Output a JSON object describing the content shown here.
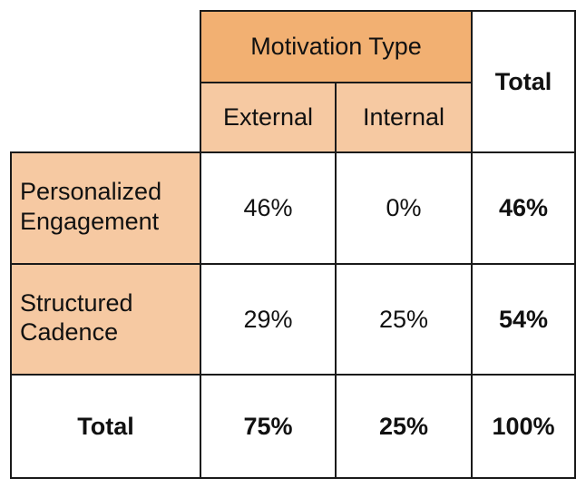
{
  "chart_data": {
    "type": "table",
    "group_header": "Motivation Type",
    "columns": [
      "External",
      "Internal"
    ],
    "total_label": "Total",
    "rows": [
      {
        "label": "Personalized Engagement",
        "values": [
          "46%",
          "0%"
        ],
        "total": "46%"
      },
      {
        "label": "Structured Cadence",
        "values": [
          "29%",
          "25%"
        ],
        "total": "54%"
      }
    ],
    "column_totals": [
      "75%",
      "25%"
    ],
    "grand_total": "100%"
  },
  "colors": {
    "header_dark": "#f2b072",
    "header_light": "#f6c9a2",
    "grid": "#1a1a1a"
  }
}
